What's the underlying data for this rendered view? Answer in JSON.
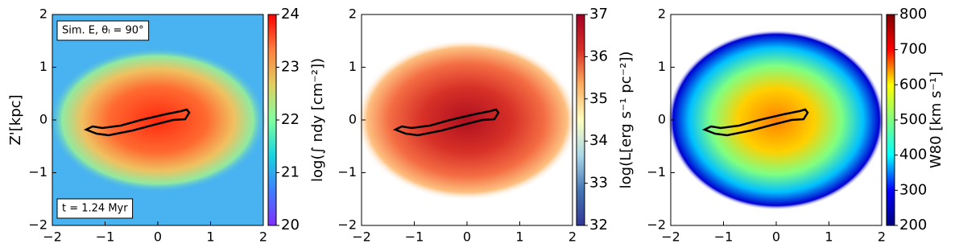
{
  "chart_data": [
    {
      "type": "image",
      "ylabel": "Z'[kpc]",
      "annotations": [
        "Sim. E, θₗ = 90°",
        "t = 1.24 Myr"
      ],
      "xlim": [
        -2,
        2
      ],
      "ylim": [
        -2,
        2
      ],
      "xticks": [
        {
          "value": -2,
          "label": "−2"
        },
        {
          "value": -1,
          "label": "−1"
        },
        0,
        1,
        2
      ],
      "yticks": [
        {
          "value": -2,
          "label": "−2"
        },
        {
          "value": -1,
          "label": "−1"
        },
        0,
        1,
        2
      ],
      "colorbar": {
        "label": "log(∫ ndy [cm⁻²])",
        "lim": [
          20,
          24
        ],
        "ticks": [
          20,
          21,
          22,
          23,
          24
        ],
        "colormap": [
          "#7f2fff",
          "#3f7fff",
          "#19d5e0",
          "#7fff9f",
          "#e0d060",
          "#ff7f3f",
          "#ff0000"
        ]
      }
    },
    {
      "type": "image",
      "xlim": [
        -2,
        2
      ],
      "ylim": [
        -2,
        2
      ],
      "xticks": [
        {
          "value": -2,
          "label": "−2"
        },
        {
          "value": -1,
          "label": "−1"
        },
        0,
        1,
        2
      ],
      "yticks": [
        {
          "value": -2,
          "label": "−2"
        },
        {
          "value": -1,
          "label": "−1"
        },
        0,
        1,
        2
      ],
      "colorbar": {
        "label": "log(L[erg s⁻¹ pc⁻²])",
        "lim": [
          32,
          37
        ],
        "ticks": [
          32,
          33,
          34,
          35,
          36,
          37
        ],
        "colormap": [
          "#313695",
          "#4575b4",
          "#abd9e9",
          "#ffffbf",
          "#fdae61",
          "#d73027",
          "#a50026"
        ]
      }
    },
    {
      "type": "image",
      "xlim": [
        -2,
        2
      ],
      "ylim": [
        -2,
        2
      ],
      "xticks": [
        {
          "value": -2,
          "label": "−2"
        },
        {
          "value": -1,
          "label": "−1"
        },
        0,
        1,
        2
      ],
      "yticks": [
        {
          "value": -2,
          "label": "−2"
        },
        {
          "value": -1,
          "label": "−1"
        },
        0,
        1,
        2
      ],
      "colorbar": {
        "label": "W80 [km s⁻¹]",
        "lim": [
          200,
          800
        ],
        "ticks": [
          200,
          300,
          400,
          500,
          600,
          700,
          800
        ],
        "colormap": [
          "#00007f",
          "#0000ff",
          "#00ffff",
          "#7fff7f",
          "#ffff00",
          "#ff0000",
          "#7f0000"
        ]
      }
    }
  ]
}
